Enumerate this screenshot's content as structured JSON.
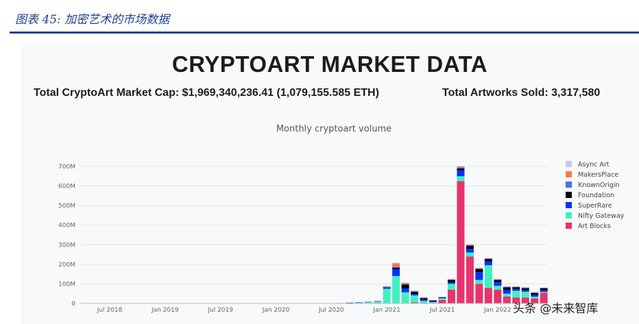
{
  "caption": "图表 45: 加密艺术的市场数据",
  "title": "CRYPTOART MARKET DATA",
  "market_cap": "Total CryptoArt Market Cap: $1,969,340,236.41 (1,079,155.585 ETH)",
  "artworks_sold": "Total Artworks Sold: 3,317,580",
  "watermark": "头条 @未来智库",
  "chart_data": {
    "type": "bar",
    "stacked": true,
    "title": "Monthly cryptoart volume",
    "ylim": [
      0,
      700
    ],
    "y_ticks": [
      "0",
      "100M",
      "200M",
      "300M",
      "400M",
      "500M",
      "600M",
      "700M"
    ],
    "x_ticks": [
      "Jul 2018",
      "Jan 2019",
      "Jul 2019",
      "Jan 2020",
      "Jul 2020",
      "Jan 2021",
      "Jul 2021",
      "Jan 2022"
    ],
    "x_tick_months": [
      6,
      12,
      18,
      24,
      30,
      36,
      42,
      48
    ],
    "legend_position": "right",
    "month_start": 0,
    "series": [
      {
        "name": "Art Blocks",
        "color": "#e8336d",
        "values": {
          "44": 625,
          "45": 240,
          "46": 100,
          "47": 80,
          "48": 70,
          "49": 35,
          "50": 30,
          "51": 30,
          "52": 25,
          "53": 55,
          "54": 0,
          "55": 0,
          "36": 0,
          "37": 0,
          "38": 2,
          "39": 6,
          "40": 3,
          "41": 3,
          "42": 18,
          "43": 70
        }
      },
      {
        "name": "Nifty Gateway",
        "color": "#41f0c0",
        "values": {
          "32": 2,
          "33": 4,
          "34": 7,
          "35": 10,
          "36": 75,
          "37": 140,
          "38": 55,
          "39": 35,
          "40": 10,
          "41": 4,
          "42": 8,
          "43": 30,
          "44": 25,
          "45": 20,
          "46": 20,
          "47": 115,
          "48": 20,
          "49": 15,
          "50": 35,
          "51": 30,
          "52": 10,
          "53": 4
        }
      },
      {
        "name": "SuperRare",
        "color": "#0433ff",
        "values": {
          "30": 1,
          "31": 2,
          "32": 2,
          "33": 2,
          "34": 2,
          "35": 3,
          "36": 8,
          "37": 35,
          "38": 20,
          "39": 8,
          "40": 8,
          "41": 3,
          "42": 2,
          "43": 8,
          "44": 30,
          "45": 20,
          "46": 40,
          "47": 20,
          "48": 20,
          "49": 20,
          "50": 10,
          "51": 10,
          "52": 10,
          "53": 8
        }
      },
      {
        "name": "Foundation",
        "color": "#000000",
        "values": {
          "37": 8,
          "38": 20,
          "39": 10,
          "40": 6,
          "41": 4,
          "42": 3,
          "43": 12,
          "44": 10,
          "45": 15,
          "46": 15,
          "47": 12,
          "48": 10,
          "49": 12,
          "50": 8,
          "51": 8,
          "52": 8,
          "53": 10
        }
      },
      {
        "name": "KnownOrigin",
        "color": "#4a6cf7",
        "values": {
          "36": 2,
          "37": 5,
          "38": 3,
          "39": 2,
          "40": 2,
          "41": 2,
          "42": 1,
          "43": 2,
          "44": 5,
          "45": 3,
          "46": 3,
          "47": 2,
          "48": 2,
          "49": 2,
          "50": 2,
          "51": 2,
          "52": 2,
          "53": 2
        }
      },
      {
        "name": "MakersPlace",
        "color": "#ff7b4a",
        "values": {
          "36": 3,
          "37": 18,
          "38": 6,
          "39": 4,
          "40": 3,
          "41": 2,
          "42": 2,
          "43": 3,
          "44": 5,
          "45": 4,
          "46": 4,
          "47": 3,
          "48": 3,
          "49": 3,
          "50": 2,
          "51": 3,
          "52": 3,
          "53": 2
        }
      },
      {
        "name": "Async Art",
        "color": "#c8c6f5",
        "values": {
          "34": 1,
          "35": 1,
          "36": 1,
          "37": 2,
          "38": 1,
          "39": 1,
          "40": 1,
          "41": 1,
          "42": 1,
          "43": 1,
          "44": 2,
          "45": 1,
          "46": 1,
          "47": 1,
          "48": 1,
          "49": 1,
          "50": 1,
          "51": 1,
          "52": 1,
          "53": 1
        }
      }
    ]
  }
}
